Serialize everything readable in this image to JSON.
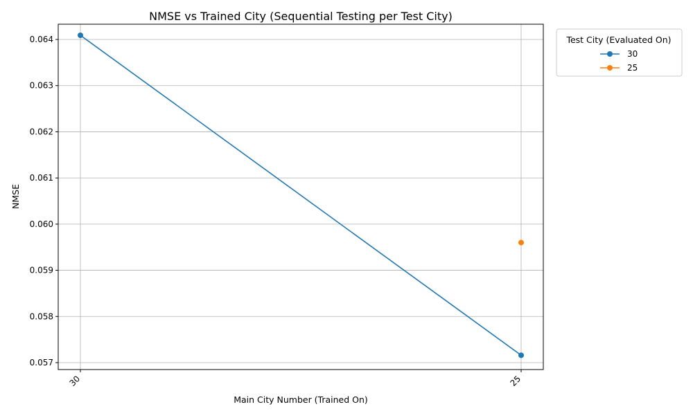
{
  "chart_data": {
    "type": "line",
    "title": "NMSE vs Trained City (Sequential Testing per Test City)",
    "xlabel": "Main City Number (Trained On)",
    "ylabel": "NMSE",
    "categories": [
      "30",
      "25"
    ],
    "ylim": [
      0.05685,
      0.06433
    ],
    "yticks": [
      "0.057",
      "0.058",
      "0.059",
      "0.060",
      "0.061",
      "0.062",
      "0.063",
      "0.064"
    ],
    "grid": true,
    "legend": {
      "title": "Test City (Evaluated On)",
      "placement": "outside-top-right"
    },
    "series": [
      {
        "name": "30",
        "color": "#1f77b4",
        "values": [
          0.06409,
          0.05716
        ]
      },
      {
        "name": "25",
        "color": "#ff7f0e",
        "values": [
          null,
          0.0596
        ]
      }
    ]
  }
}
